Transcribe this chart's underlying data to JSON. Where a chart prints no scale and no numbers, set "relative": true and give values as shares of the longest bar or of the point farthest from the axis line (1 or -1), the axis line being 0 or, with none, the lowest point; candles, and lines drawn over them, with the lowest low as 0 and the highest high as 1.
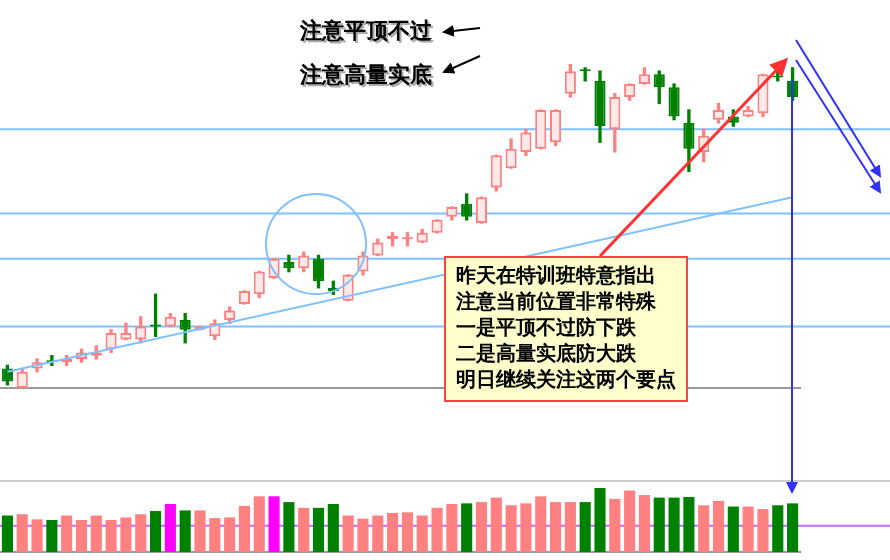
{
  "chart_data": [
    {
      "type": "candlestick",
      "relative": true,
      "tick_labels": false,
      "grid": false,
      "legend": false,
      "categories": [
        null,
        null,
        null,
        null,
        null,
        null,
        null,
        null,
        null,
        null,
        null,
        null,
        null,
        null,
        null,
        null,
        null,
        null,
        null,
        null,
        null,
        null,
        null,
        null,
        null,
        null,
        null,
        null,
        null,
        null,
        null,
        null,
        null,
        null,
        null,
        null,
        null,
        null,
        null,
        null,
        null,
        null,
        null,
        null,
        null,
        null,
        null,
        null,
        null,
        null,
        null,
        null,
        null,
        null
      ],
      "ohlc": [
        [
          0.06,
          0.07,
          0.01,
          0.02
        ],
        [
          0,
          0.06,
          0,
          0.05
        ],
        [
          0.06,
          0.09,
          0.05,
          0.08
        ],
        [
          0.08,
          0.1,
          0.07,
          0.08
        ],
        [
          0.08,
          0.1,
          0.07,
          0.09
        ],
        [
          0.09,
          0.12,
          0.08,
          0.11
        ],
        [
          0.1,
          0.13,
          0.09,
          0.11
        ],
        [
          0.12,
          0.18,
          0.11,
          0.17
        ],
        [
          0.15,
          0.2,
          0.15,
          0.17
        ],
        [
          0.15,
          0.22,
          0.14,
          0.19
        ],
        [
          0.19,
          0.29,
          0.16,
          0.19
        ],
        [
          0.19,
          0.23,
          0.19,
          0.22
        ],
        [
          0.21,
          0.23,
          0.14,
          0.18
        ],
        [
          0.18,
          0.19,
          0.18,
          0.19
        ],
        [
          0.16,
          0.21,
          0.15,
          0.2
        ],
        [
          0.21,
          0.25,
          0.2,
          0.24
        ],
        [
          0.26,
          0.3,
          0.26,
          0.3
        ],
        [
          0.29,
          0.36,
          0.28,
          0.36
        ],
        [
          0.34,
          0.4,
          0.34,
          0.4
        ],
        [
          0.39,
          0.41,
          0.36,
          0.37
        ],
        [
          0.37,
          0.42,
          0.36,
          0.41
        ],
        [
          0.4,
          0.41,
          0.31,
          0.33
        ],
        [
          0.31,
          0.33,
          0.29,
          0.3
        ],
        [
          0.27,
          0.35,
          0.27,
          0.35
        ],
        [
          0.36,
          0.42,
          0.35,
          0.41
        ],
        [
          0.41,
          0.46,
          0.41,
          0.45
        ],
        [
          0.46,
          0.48,
          0.44,
          0.47
        ],
        [
          0.46,
          0.48,
          0.44,
          0.46
        ],
        [
          0.45,
          0.49,
          0.45,
          0.48
        ],
        [
          0.48,
          0.52,
          0.48,
          0.52
        ],
        [
          0.53,
          0.56,
          0.52,
          0.56
        ],
        [
          0.57,
          0.6,
          0.52,
          0.53
        ],
        [
          0.51,
          0.59,
          0.51,
          0.59
        ],
        [
          0.62,
          0.72,
          0.61,
          0.72
        ],
        [
          0.68,
          0.77,
          0.68,
          0.74
        ],
        [
          0.73,
          0.8,
          0.72,
          0.79
        ],
        [
          0.74,
          0.86,
          0.74,
          0.86
        ],
        [
          0.76,
          0.86,
          0.75,
          0.86
        ],
        [
          0.91,
          1,
          0.9,
          0.98
        ],
        [
          0.98,
          0.99,
          0.95,
          0.98
        ],
        [
          0.95,
          0.98,
          0.76,
          0.81
        ],
        [
          0.8,
          0.91,
          0.73,
          0.9
        ],
        [
          0.9,
          0.94,
          0.89,
          0.94
        ],
        [
          0.94,
          0.99,
          0.94,
          0.97
        ],
        [
          0.97,
          0.98,
          0.88,
          0.93
        ],
        [
          0.93,
          0.94,
          0.83,
          0.84
        ],
        [
          0.82,
          0.86,
          0.67,
          0.74
        ],
        [
          0.73,
          0.8,
          0.7,
          0.78
        ],
        [
          0.83,
          0.88,
          0.82,
          0.86
        ],
        [
          0.84,
          0.86,
          0.81,
          0.82
        ],
        [
          0.84,
          0.87,
          0.84,
          0.86
        ],
        [
          0.85,
          0.97,
          0.84,
          0.97
        ],
        [
          0.96,
          0.99,
          0.95,
          0.96
        ],
        [
          0.95,
          0.99,
          0.89,
          0.9
        ]
      ],
      "colors": [
        "#008000",
        "#ff8080",
        "#ff8080",
        "#008000",
        "#ff8080",
        "#ff8080",
        "#ff8080",
        "#ff8080",
        "#ff8080",
        "#ff8080",
        "#008000",
        "#ff8080",
        "#008000",
        "#ff8080",
        "#ff8080",
        "#ff8080",
        "#ff8080",
        "#ff8080",
        "#ff8080",
        "#008000",
        "#ff8080",
        "#008000",
        "#008000",
        "#ff8080",
        "#ff8080",
        "#ff8080",
        "#ff8080",
        "#ff8080",
        "#ff8080",
        "#ff8080",
        "#ff8080",
        "#008000",
        "#ff8080",
        "#ff8080",
        "#ff8080",
        "#ff8080",
        "#ff8080",
        "#ff8080",
        "#ff8080",
        "#008000",
        "#008000",
        "#ff8080",
        "#ff8080",
        "#ff8080",
        "#008000",
        "#008000",
        "#008000",
        "#ff8080",
        "#ff8080",
        "#008000",
        "#ff8080",
        "#ff8080",
        "#008000",
        "#008000"
      ],
      "series": [
        {
          "type": "line",
          "color": "#80c0ff",
          "values": [
            0.05,
            null,
            null,
            null,
            null,
            null,
            null,
            null,
            null,
            null,
            null,
            null,
            null,
            null,
            null,
            null,
            null,
            null,
            null,
            null,
            null,
            null,
            null,
            null,
            null,
            null,
            null,
            null,
            null,
            null,
            null,
            null,
            null,
            null,
            null,
            null,
            null,
            null,
            null,
            null,
            null,
            null,
            null,
            null,
            null,
            null,
            null,
            null,
            null,
            null,
            null,
            null,
            null,
            0.59
          ]
        }
      ],
      "ref_lines": [
        {
          "axis": "y",
          "value": 0.8,
          "color": "#80c0ff"
        },
        {
          "axis": "y",
          "value": 0.54,
          "color": "#80c0ff"
        },
        {
          "axis": "y",
          "value": 0.4,
          "color": "#80c0ff"
        },
        {
          "axis": "y",
          "value": 0.19,
          "color": "#80c0ff"
        }
      ],
      "annotations": [
        "注意平顶不过",
        "注意高量实底",
        "昨天在特训班特意指出",
        "注意当前位置非常特殊",
        "一是平顶不过防下跌",
        "二是高量实底防大跌",
        "明日继续关注这两个要点"
      ]
    },
    {
      "type": "bar",
      "relative": true,
      "tick_labels": false,
      "grid": false,
      "legend": false,
      "categories": [
        null,
        null,
        null,
        null,
        null,
        null,
        null,
        null,
        null,
        null,
        null,
        null,
        null,
        null,
        null,
        null,
        null,
        null,
        null,
        null,
        null,
        null,
        null,
        null,
        null,
        null,
        null,
        null,
        null,
        null,
        null,
        null,
        null,
        null,
        null,
        null,
        null,
        null,
        null,
        null,
        null,
        null,
        null,
        null,
        null,
        null,
        null,
        null,
        null,
        null,
        null,
        null,
        null,
        null
      ],
      "values": [
        0.57,
        0.59,
        0.51,
        0.5,
        0.57,
        0.5,
        0.57,
        0.5,
        0.54,
        0.59,
        0.64,
        0.75,
        0.65,
        0.65,
        0.53,
        0.54,
        0.72,
        0.87,
        0.87,
        0.78,
        0.69,
        0.69,
        0.75,
        0.57,
        0.52,
        0.57,
        0.61,
        0.62,
        0.57,
        0.69,
        0.75,
        0.76,
        0.78,
        0.85,
        0.73,
        0.76,
        0.87,
        0.78,
        0.78,
        0.78,
        1,
        0.83,
        0.96,
        0.89,
        0.85,
        0.85,
        0.86,
        0.73,
        0.8,
        0.71,
        0.71,
        0.67,
        0.73,
        0.76
      ],
      "colors": [
        "#008000",
        "#ff8080",
        "#ff8080",
        "#008000",
        "#ff8080",
        "#ff8080",
        "#ff8080",
        "#ff8080",
        "#ff8080",
        "#ff8080",
        "#008000",
        "#ff00ff",
        "#008000",
        "#ff8080",
        "#ff8080",
        "#ff8080",
        "#ff8080",
        "#ff8080",
        "#ff00ff",
        "#008000",
        "#ff8080",
        "#008000",
        "#008000",
        "#ff8080",
        "#ff8080",
        "#ff8080",
        "#ff8080",
        "#ff8080",
        "#ff8080",
        "#ff8080",
        "#ff8080",
        "#008000",
        "#ff8080",
        "#ff8080",
        "#ff8080",
        "#ff8080",
        "#ff8080",
        "#ff8080",
        "#ff8080",
        "#008000",
        "#008000",
        "#ff8080",
        "#ff8080",
        "#ff8080",
        "#008000",
        "#008000",
        "#008000",
        "#ff8080",
        "#ff8080",
        "#008000",
        "#ff8080",
        "#ff8080",
        "#008000",
        "#008000"
      ],
      "ref_lines": [
        {
          "axis": "y",
          "value": 0.41,
          "color": "#cc66ff"
        }
      ]
    }
  ]
}
